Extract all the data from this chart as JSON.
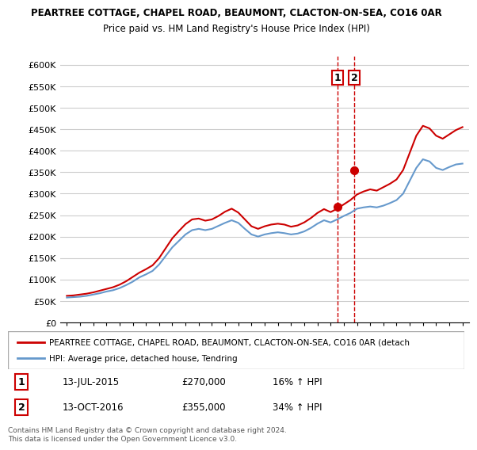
{
  "title1": "PEARTREE COTTAGE, CHAPEL ROAD, BEAUMONT, CLACTON-ON-SEA, CO16 0AR",
  "title2": "Price paid vs. HM Land Registry's House Price Index (HPI)",
  "ylabel_format": "£{0}K",
  "yticks": [
    0,
    50000,
    100000,
    150000,
    200000,
    250000,
    300000,
    350000,
    400000,
    450000,
    500000,
    550000,
    600000
  ],
  "ylim": [
    0,
    620000
  ],
  "sale1_date": "13-JUL-2015",
  "sale1_price": 270000,
  "sale1_pct": "16%",
  "sale2_date": "13-OCT-2016",
  "sale2_price": 355000,
  "sale2_pct": "34%",
  "legend_line1": "PEARTREE COTTAGE, CHAPEL ROAD, BEAUMONT, CLACTON-ON-SEA, CO16 0AR (detach",
  "legend_line2": "HPI: Average price, detached house, Tendring",
  "line1_color": "#cc0000",
  "line2_color": "#6699cc",
  "vline_color": "#cc0000",
  "footnote": "Contains HM Land Registry data © Crown copyright and database right 2024.\nThis data is licensed under the Open Government Licence v3.0.",
  "xstart_year": 1995,
  "xend_year": 2025
}
